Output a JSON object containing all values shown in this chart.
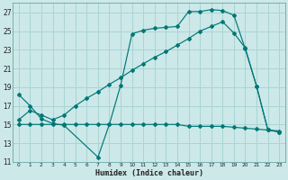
{
  "background_color": "#cce8e8",
  "grid_color": "#aad4d4",
  "line_color": "#007777",
  "xlabel": "Humidex (Indice chaleur)",
  "xlim": [
    -0.5,
    23.5
  ],
  "ylim": [
    11,
    28
  ],
  "yticks": [
    11,
    13,
    15,
    17,
    19,
    21,
    23,
    25,
    27
  ],
  "xticks": [
    0,
    1,
    2,
    3,
    4,
    5,
    6,
    7,
    8,
    9,
    10,
    11,
    12,
    13,
    14,
    15,
    16,
    17,
    18,
    19,
    20,
    21,
    22,
    23
  ],
  "series1_x": [
    0,
    1,
    2,
    3,
    4,
    7,
    8,
    9,
    10,
    11,
    12,
    13,
    14,
    15,
    16,
    17,
    18,
    19,
    20,
    21,
    22,
    23
  ],
  "series1_y": [
    18.2,
    17.0,
    15.6,
    15.1,
    14.9,
    11.5,
    15.0,
    19.2,
    24.7,
    25.1,
    25.3,
    25.4,
    25.5,
    27.1,
    27.1,
    27.3,
    27.2,
    26.7,
    23.1,
    19.1,
    14.4,
    14.2
  ],
  "series2_x": [
    0,
    1,
    2,
    3,
    4,
    5,
    6,
    7,
    8,
    9,
    10,
    11,
    12,
    13,
    14,
    15,
    16,
    17,
    18,
    19,
    20,
    21,
    22,
    23
  ],
  "series2_y": [
    15.0,
    15.0,
    15.0,
    15.0,
    15.0,
    15.0,
    15.0,
    15.0,
    15.0,
    15.0,
    15.0,
    15.0,
    15.0,
    15.0,
    15.0,
    14.8,
    14.8,
    14.8,
    14.8,
    14.7,
    14.6,
    14.5,
    14.4,
    14.3
  ],
  "series3_x": [
    0,
    1,
    2,
    3,
    4,
    5,
    6,
    7,
    8,
    9,
    10,
    11,
    12,
    13,
    14,
    15,
    16,
    17,
    18,
    19,
    20,
    21,
    22,
    23
  ],
  "series3_y": [
    15.5,
    16.5,
    16.0,
    15.5,
    16.0,
    17.0,
    17.8,
    18.5,
    19.3,
    20.0,
    20.8,
    21.5,
    22.2,
    22.8,
    23.5,
    24.2,
    25.0,
    25.5,
    26.0,
    24.8,
    23.2,
    19.1,
    14.4,
    14.2
  ]
}
